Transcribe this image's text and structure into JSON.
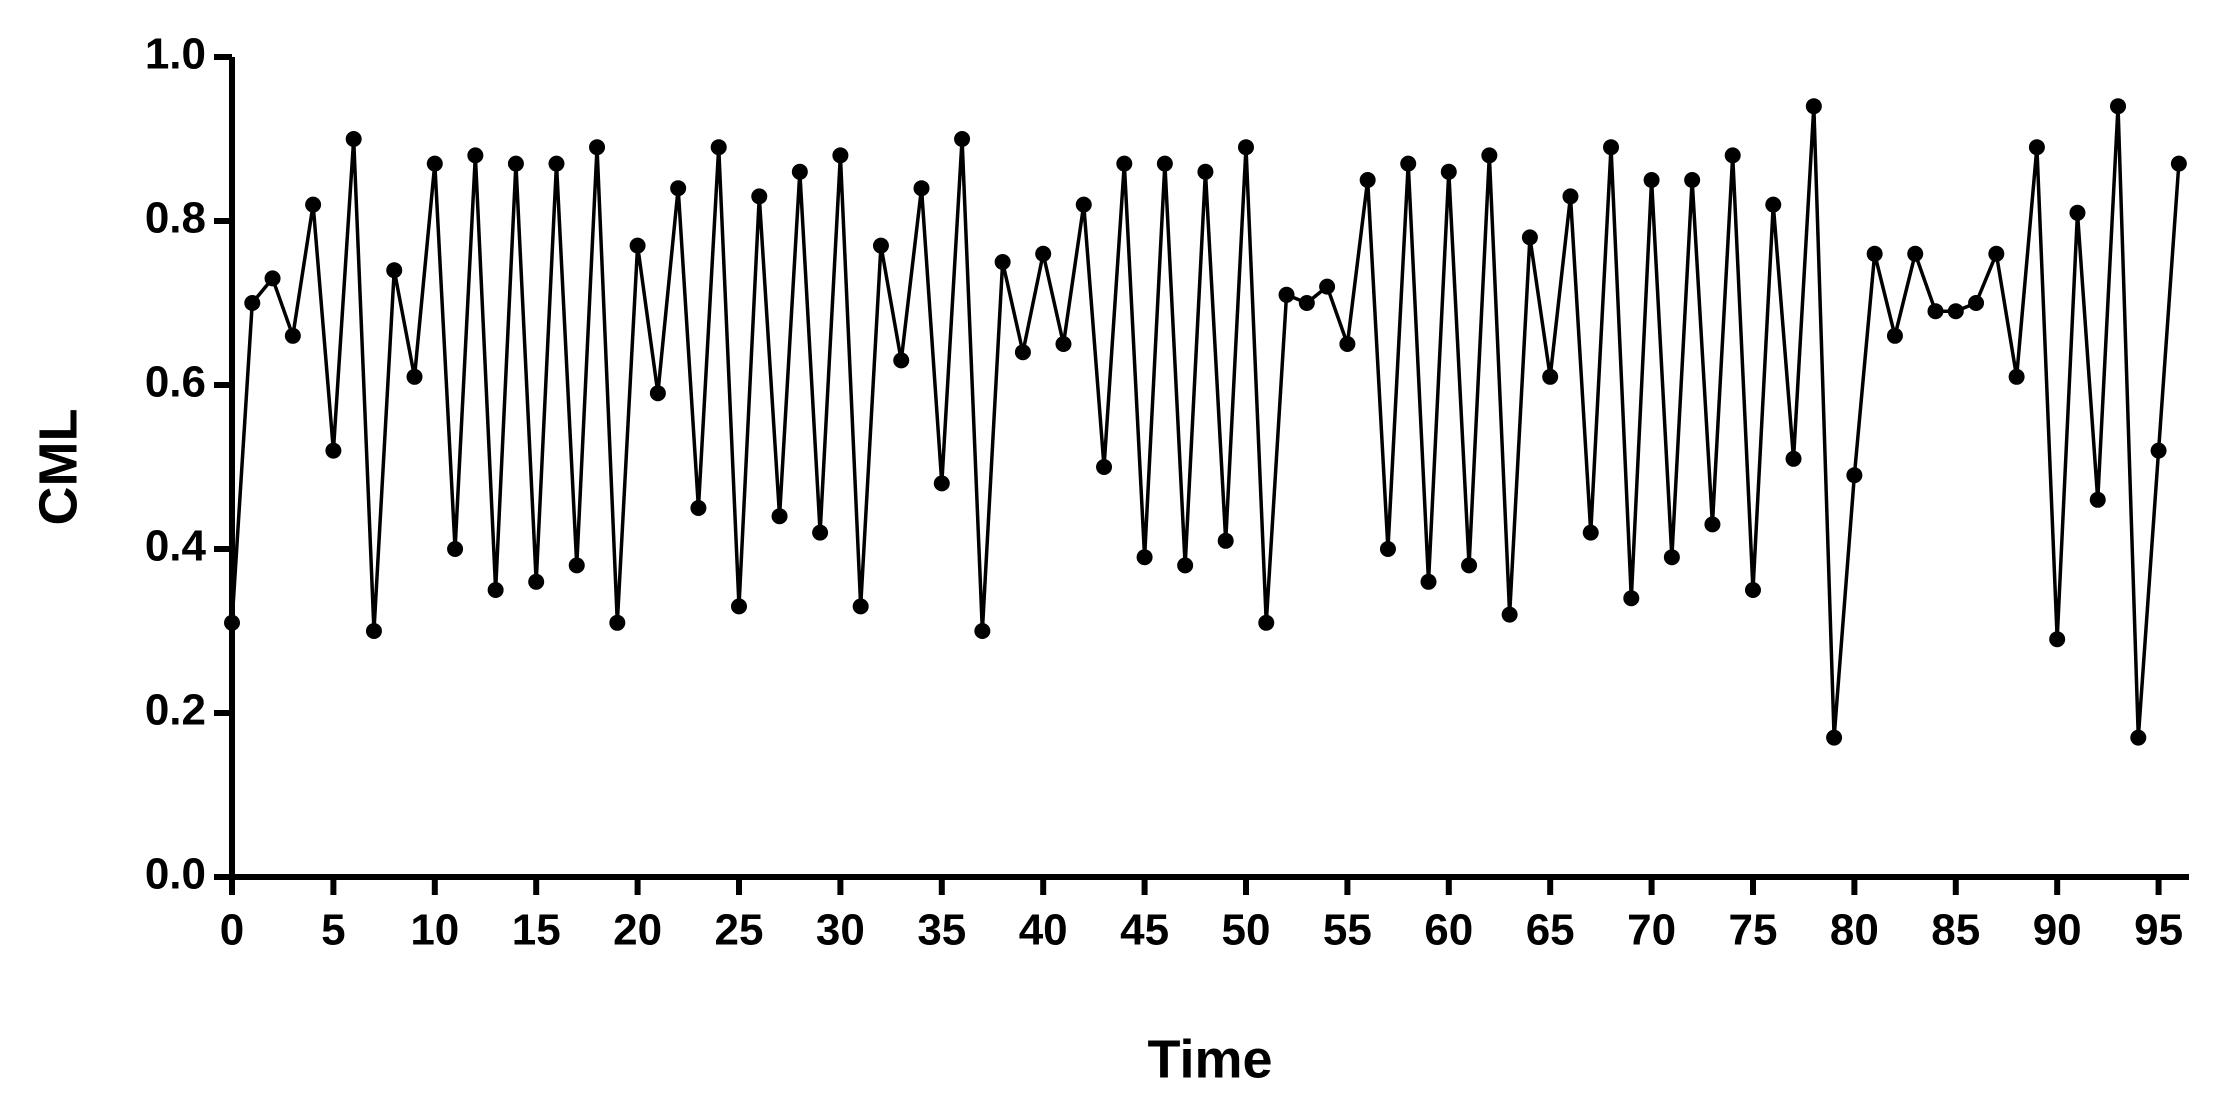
{
  "chart_data": {
    "type": "line",
    "x_label": "Time",
    "y_label": "CML",
    "color": "#000000",
    "x": [
      0,
      1,
      2,
      3,
      4,
      5,
      6,
      7,
      8,
      9,
      10,
      11,
      12,
      13,
      14,
      15,
      16,
      17,
      18,
      19,
      20,
      21,
      22,
      23,
      24,
      25,
      26,
      27,
      28,
      29,
      30,
      31,
      32,
      33,
      34,
      35,
      36,
      37,
      38,
      39,
      40,
      41,
      42,
      43,
      44,
      45,
      46,
      47,
      48,
      49,
      50,
      51,
      52,
      53,
      54,
      55,
      56,
      57,
      58,
      59,
      60,
      61,
      62,
      63,
      64,
      65,
      66,
      67,
      68,
      69,
      70,
      71,
      72,
      73,
      74,
      75,
      76,
      77,
      78,
      79,
      80,
      81,
      82,
      83,
      84,
      85,
      86,
      87,
      88,
      89,
      90,
      91,
      92,
      93,
      94,
      95,
      96
    ],
    "values": [
      0.31,
      0.7,
      0.73,
      0.66,
      0.82,
      0.52,
      0.9,
      0.3,
      0.74,
      0.61,
      0.87,
      0.4,
      0.88,
      0.35,
      0.87,
      0.36,
      0.87,
      0.38,
      0.89,
      0.31,
      0.77,
      0.59,
      0.84,
      0.45,
      0.89,
      0.33,
      0.83,
      0.44,
      0.86,
      0.42,
      0.88,
      0.33,
      0.77,
      0.63,
      0.84,
      0.48,
      0.9,
      0.3,
      0.75,
      0.64,
      0.76,
      0.65,
      0.82,
      0.5,
      0.87,
      0.39,
      0.87,
      0.38,
      0.86,
      0.41,
      0.89,
      0.31,
      0.71,
      0.7,
      0.72,
      0.65,
      0.85,
      0.4,
      0.87,
      0.36,
      0.86,
      0.38,
      0.88,
      0.32,
      0.78,
      0.61,
      0.83,
      0.42,
      0.89,
      0.34,
      0.85,
      0.39,
      0.85,
      0.43,
      0.88,
      0.35,
      0.82,
      0.51,
      0.94,
      0.17,
      0.49,
      0.76,
      0.66,
      0.76,
      0.69,
      0.69,
      0.7,
      0.76,
      0.61,
      0.89,
      0.29,
      0.81,
      0.46,
      0.94,
      0.17,
      0.52,
      0.87
    ],
    "xlim": [
      0,
      96.5
    ],
    "ylim": [
      0,
      1
    ],
    "xticks": [
      0,
      5,
      10,
      15,
      20,
      25,
      30,
      35,
      40,
      45,
      50,
      55,
      60,
      65,
      70,
      75,
      80,
      85,
      90,
      95
    ],
    "yticks": [
      {
        "value": 0,
        "label": "0.0"
      },
      0.2,
      0.4,
      0.6,
      0.8,
      {
        "value": 1,
        "label": "1.0"
      }
    ]
  }
}
